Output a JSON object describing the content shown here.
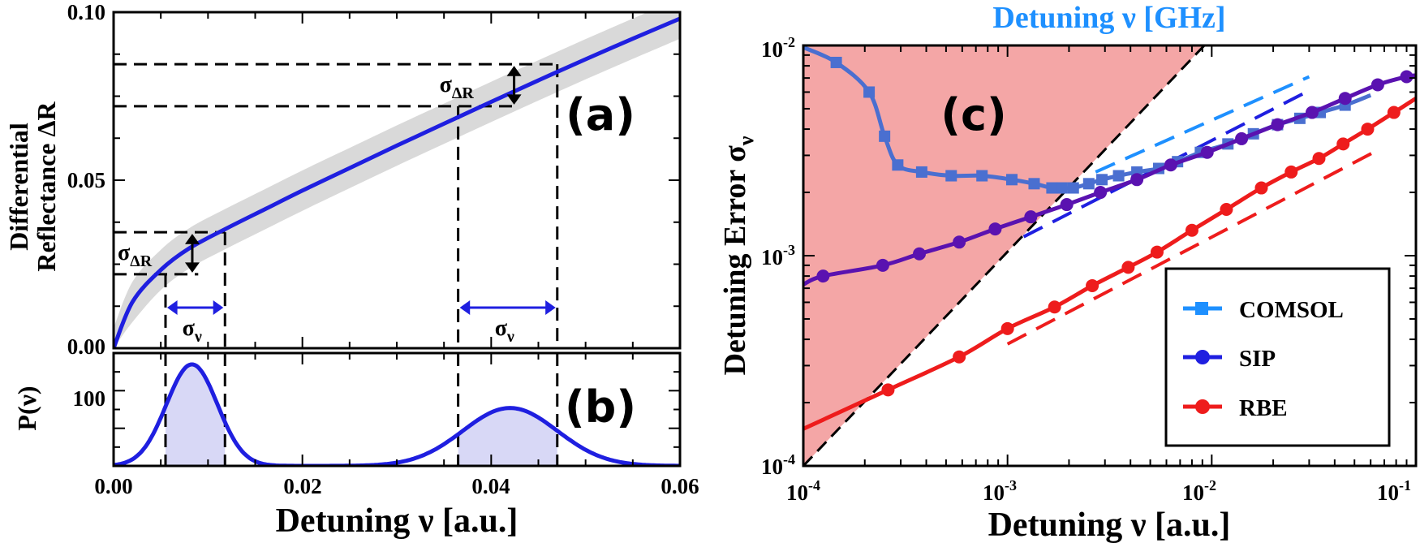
{
  "chart_data": [
    {
      "panel": "a",
      "type": "line",
      "panel_label": "(a)",
      "ylabel_line1": "Differential",
      "ylabel_line2": "Reflectance ΔR",
      "xlim": [
        0,
        0.06
      ],
      "ylim": [
        0,
        0.1
      ],
      "yticks": [
        "0.00",
        "0.05",
        "0.10"
      ],
      "curve": {
        "name": "ΔR(ν)",
        "color": "#1f1fe0",
        "x": [
          0,
          0.002,
          0.005,
          0.008,
          0.012,
          0.016,
          0.02,
          0.025,
          0.03,
          0.035,
          0.04,
          0.045,
          0.05,
          0.055,
          0.06
        ],
        "y": [
          0,
          0.0138,
          0.0233,
          0.0297,
          0.0357,
          0.0413,
          0.0469,
          0.0536,
          0.0603,
          0.0668,
          0.0733,
          0.0797,
          0.086,
          0.0921,
          0.0981
        ]
      },
      "band_halfwidth": 0.006,
      "band_color": "#d9d9d9",
      "markers": [
        {
          "x_low": 0.0055,
          "x_high": 0.0118,
          "y_low": 0.022,
          "y_high": 0.0345,
          "sigma_dr_label": "σ",
          "sigma_dr_sub": "ΔR",
          "sigma_nu_label": "σ",
          "sigma_nu_sub": "ν"
        },
        {
          "x_low": 0.0365,
          "x_high": 0.047,
          "y_low": 0.072,
          "y_high": 0.0845,
          "sigma_dr_label": "σ",
          "sigma_dr_sub": "ΔR",
          "sigma_nu_label": "σ",
          "sigma_nu_sub": "ν"
        }
      ]
    },
    {
      "panel": "b",
      "type": "line",
      "panel_label": "(b)",
      "ylabel": "P(ν)",
      "xlabel": "Detuning ν [a.u.]",
      "xlim": [
        0,
        0.06
      ],
      "ylim": [
        0,
        150
      ],
      "xticks": [
        "0.00",
        "0.02",
        "0.04",
        "0.06"
      ],
      "ytick": "100",
      "color": "#1f1fe0",
      "fill_color": "#d8d8f6",
      "peaks": [
        {
          "center": 0.0083,
          "sigma": 0.0027,
          "amplitude": 135
        },
        {
          "center": 0.042,
          "sigma": 0.005,
          "amplitude": 77
        }
      ],
      "shaded_ranges": [
        [
          0.0055,
          0.0118
        ],
        [
          0.0365,
          0.047
        ]
      ]
    },
    {
      "panel": "c",
      "type": "line",
      "scale": "log-log",
      "panel_label": "(c)",
      "title": "Detuning ν [GHz]",
      "title_color": "#1e90ff",
      "ylabel": "Detuning Error σ",
      "ylabel_sub": "ν",
      "xlabel": "Detuning ν [a.u.]",
      "xlim": [
        0.0001,
        0.1
      ],
      "ylim": [
        0.0001,
        0.01
      ],
      "xtick_exponents": [
        "-4",
        "-3",
        "-2",
        "-1"
      ],
      "ytick_exponents": [
        "-4",
        "-3",
        "-2"
      ],
      "tick_base": "10",
      "shaded_region_color": "#f4a6a6",
      "diagonal_from": [
        0.0001,
        0.0001
      ],
      "diagonal_to": [
        0.0092,
        0.01
      ],
      "series": [
        {
          "name": "COMSOL",
          "color": "#1e90ff",
          "marker": "square",
          "line_color": "#4a6fd0",
          "x": [
            0.0001,
            0.000145,
            0.00021,
            0.00025,
            0.00029,
            0.00038,
            0.00053,
            0.00075,
            0.00105,
            0.00135,
            0.00165,
            0.00185,
            0.0021,
            0.0025,
            0.0029,
            0.0035,
            0.0043,
            0.0055,
            0.0068,
            0.0088,
            0.012,
            0.016,
            0.021,
            0.027,
            0.034,
            0.045,
            0.06
          ],
          "y": [
            0.0098,
            0.0083,
            0.006,
            0.0037,
            0.0027,
            0.0025,
            0.0024,
            0.0024,
            0.0023,
            0.0022,
            0.0021,
            0.0021,
            0.0021,
            0.0022,
            0.0023,
            0.0024,
            0.0025,
            0.0026,
            0.0028,
            0.0031,
            0.0034,
            0.0038,
            0.0042,
            0.0045,
            0.0048,
            0.0052,
            0.0058
          ]
        },
        {
          "name": "SIP",
          "color": "#1f1fe0",
          "marker": "circle",
          "line_color": "#5a12b0",
          "x": [
            0.0001,
            0.000125,
            0.000245,
            0.00037,
            0.00058,
            0.00087,
            0.0013,
            0.00195,
            0.00285,
            0.0043,
            0.0063,
            0.0095,
            0.014,
            0.021,
            0.031,
            0.045,
            0.065,
            0.09,
            0.1
          ],
          "y": [
            0.00073,
            0.0008,
            0.0009,
            0.00102,
            0.00116,
            0.00134,
            0.00153,
            0.00175,
            0.002,
            0.0023,
            0.0027,
            0.0031,
            0.0036,
            0.0042,
            0.0048,
            0.0056,
            0.0065,
            0.0071,
            0.0072
          ]
        },
        {
          "name": "RBE",
          "color": "#ee1c1c",
          "marker": "circle",
          "line_color": "#ee1c1c",
          "x": [
            0.0001,
            0.00026,
            0.00058,
            0.001,
            0.0017,
            0.0026,
            0.0039,
            0.0054,
            0.008,
            0.0118,
            0.0175,
            0.0245,
            0.0335,
            0.044,
            0.058,
            0.078,
            0.1
          ],
          "y": [
            0.00015,
            0.00023,
            0.00033,
            0.00045,
            0.00057,
            0.00072,
            0.00088,
            0.00104,
            0.00132,
            0.00166,
            0.0021,
            0.0025,
            0.0029,
            0.0034,
            0.004,
            0.0048,
            0.0056
          ]
        }
      ],
      "reference_lines": [
        {
          "color": "#1e90ff",
          "from": [
            0.0027,
            0.0025
          ],
          "to": [
            0.03,
            0.0071
          ]
        },
        {
          "color": "#1f1fe0",
          "from": [
            0.0012,
            0.00123
          ],
          "to": [
            0.03,
            0.0061
          ]
        },
        {
          "color": "#ee1c1c",
          "from": [
            0.001,
            0.00038
          ],
          "to": [
            0.062,
            0.0031
          ]
        }
      ]
    }
  ]
}
